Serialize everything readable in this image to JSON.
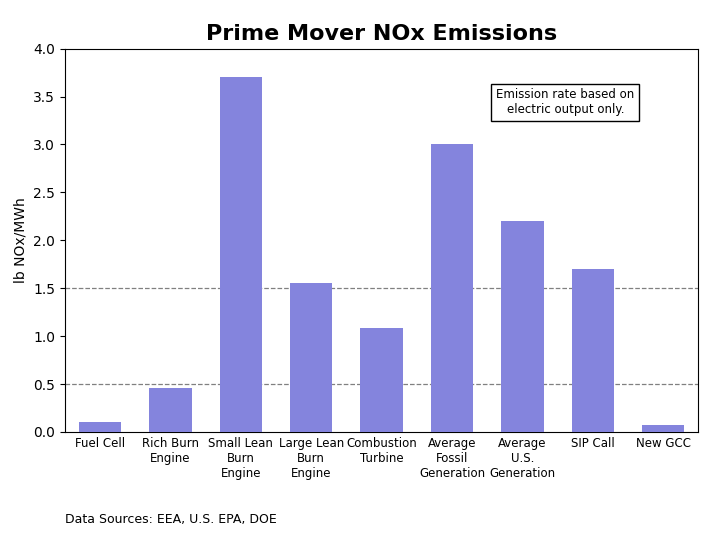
{
  "chart_data": {
    "type": "bar",
    "title": "Prime Mover NOx Emissions",
    "ylabel": "lb NOx/MWh",
    "categories": [
      "Fuel Cell",
      "Rich Burn\nEngine",
      "Small Lean\nBurn\nEngine",
      "Large Lean\nBurn\nEngine",
      "Combustion\nTurbine",
      "Average\nFossil\nGeneration",
      "Average\nU.S.\nGeneration",
      "SIP Call",
      "New GCC"
    ],
    "values": [
      0.1,
      0.46,
      3.7,
      1.55,
      1.08,
      3.0,
      2.2,
      1.7,
      0.07
    ],
    "color": "#8484dd",
    "ylim": [
      0.0,
      4.0
    ],
    "yticks": [
      0.0,
      0.5,
      1.0,
      1.5,
      2.0,
      2.5,
      3.0,
      3.5,
      4.0
    ],
    "reference_lines": [
      0.5,
      1.5
    ],
    "annotations": [
      "Emission rate based on\nelectric output only.",
      "Data Sources: EEA, U.S. EPA, DOE"
    ],
    "grid": false
  }
}
